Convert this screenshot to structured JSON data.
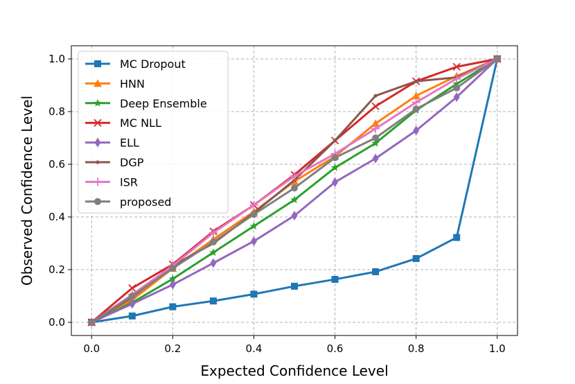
{
  "chart_data": {
    "type": "line",
    "title": "",
    "xlabel": "Expected Confidence Level",
    "ylabel": "Observed Confidence Level",
    "xlim": [
      -0.05,
      1.05
    ],
    "ylim": [
      -0.05,
      1.05
    ],
    "xticks": [
      0.0,
      0.2,
      0.4,
      0.6,
      0.8,
      1.0
    ],
    "yticks": [
      0.0,
      0.2,
      0.4,
      0.6,
      0.8,
      1.0
    ],
    "xtick_labels": [
      "0.0",
      "0.2",
      "0.4",
      "0.6",
      "0.8",
      "1.0"
    ],
    "ytick_labels": [
      "0.0",
      "0.2",
      "0.4",
      "0.6",
      "0.8",
      "1.0"
    ],
    "grid": true,
    "legend_position": "top-left",
    "x": [
      0.0,
      0.1,
      0.2,
      0.3,
      0.4,
      0.5,
      0.6,
      0.7,
      0.8,
      0.9,
      1.0
    ],
    "series": [
      {
        "name": "MC Dropout",
        "color": "#1f77b4",
        "marker": "square",
        "values": [
          0.0,
          0.024,
          0.059,
          0.081,
          0.107,
          0.137,
          0.163,
          0.192,
          0.242,
          0.322,
          1.0
        ]
      },
      {
        "name": "HNN",
        "color": "#ff7f0e",
        "marker": "triangle",
        "values": [
          0.0,
          0.085,
          0.205,
          0.315,
          0.42,
          0.535,
          0.63,
          0.755,
          0.86,
          0.935,
          1.0
        ]
      },
      {
        "name": "Deep Ensemble",
        "color": "#2ca02c",
        "marker": "star",
        "values": [
          0.0,
          0.075,
          0.165,
          0.265,
          0.365,
          0.465,
          0.587,
          0.68,
          0.805,
          0.905,
          1.0
        ]
      },
      {
        "name": "MC NLL",
        "color": "#d62728",
        "marker": "x",
        "values": [
          0.0,
          0.13,
          0.22,
          0.345,
          0.445,
          0.56,
          0.69,
          0.82,
          0.915,
          0.97,
          1.0
        ]
      },
      {
        "name": "ELL",
        "color": "#9467bd",
        "marker": "diamond",
        "values": [
          0.0,
          0.07,
          0.143,
          0.225,
          0.308,
          0.405,
          0.532,
          0.622,
          0.728,
          0.855,
          1.0
        ]
      },
      {
        "name": "DGP",
        "color": "#8c564b",
        "marker": "dot",
        "values": [
          0.0,
          0.095,
          0.215,
          0.3,
          0.415,
          0.54,
          0.69,
          0.86,
          0.915,
          0.93,
          1.0
        ]
      },
      {
        "name": "ISR",
        "color": "#e377c2",
        "marker": "plus",
        "values": [
          0.0,
          0.105,
          0.215,
          0.34,
          0.445,
          0.555,
          0.64,
          0.735,
          0.835,
          0.925,
          1.0
        ]
      },
      {
        "name": "proposed",
        "color": "#7f7f7f",
        "marker": "circle",
        "values": [
          0.0,
          0.1,
          0.205,
          0.305,
          0.41,
          0.51,
          0.625,
          0.7,
          0.81,
          0.89,
          1.0
        ]
      }
    ]
  }
}
